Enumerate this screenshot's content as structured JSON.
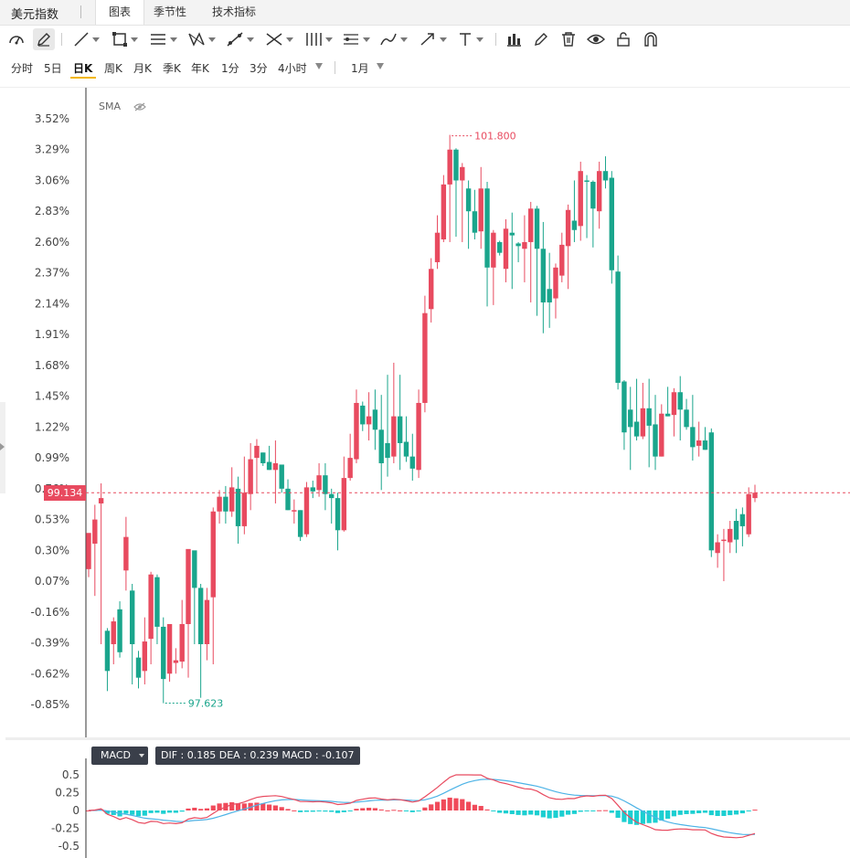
{
  "header": {
    "title": "美元指数",
    "tabs": [
      {
        "label": "图表",
        "active": true
      },
      {
        "label": "季节性",
        "active": false
      },
      {
        "label": "技术指标",
        "active": false
      }
    ]
  },
  "toolbar": {
    "icons": [
      "gauge-icon",
      "pencil-icon",
      "line-icon",
      "rectangle-icon",
      "channel-icon",
      "pattern-icon",
      "measure-icon",
      "fib-icon",
      "gann-icon",
      "parallel-icon",
      "brush-icon",
      "arrow-icon",
      "text-icon",
      "bar-chart-icon",
      "edit-icon",
      "trash-icon",
      "eye-icon",
      "lock-icon",
      "magnet-icon"
    ]
  },
  "periods": {
    "items": [
      "分时",
      "5日",
      "日K",
      "周K",
      "月K",
      "季K",
      "年K",
      "1分",
      "3分",
      "4小时"
    ],
    "active": "日K",
    "range": "1月"
  },
  "indicator": {
    "label": "SMA"
  },
  "colors": {
    "up": "#e84a5f",
    "down": "#1aa58c",
    "dif": "#e84a5f",
    "dea": "#4db3e6",
    "hist_pos": "#f04a5a",
    "hist_neg": "#1ccfd1"
  },
  "chart_data": {
    "type": "candlestick",
    "y_ticks": [
      "3.52%",
      "3.29%",
      "3.06%",
      "2.83%",
      "2.60%",
      "2.37%",
      "2.14%",
      "1.91%",
      "1.68%",
      "1.45%",
      "1.22%",
      "0.99%",
      "0.76%",
      "0.53%",
      "0.30%",
      "0.07%",
      "-0.16%",
      "-0.39%",
      "-0.62%",
      "-0.85%"
    ],
    "ylim_pct": [
      -0.85,
      3.52
    ],
    "current_price": "99.134",
    "max_label": "101.800",
    "min_label": "97.623",
    "candles": [
      [
        0.16,
        0.43,
        0.4,
        0.1
      ],
      [
        0.35,
        0.53,
        0.64,
        -0.04
      ],
      [
        0.65,
        0.69,
        0.8,
        -0.4
      ],
      [
        -0.3,
        -0.6,
        -0.28,
        -0.75
      ],
      [
        -0.4,
        -0.23,
        -0.2,
        -0.55
      ],
      [
        -0.14,
        -0.46,
        -0.08,
        -0.5
      ],
      [
        0.15,
        0.4,
        0.55,
        0.0
      ],
      [
        0.0,
        -0.4,
        0.05,
        -0.7
      ],
      [
        -0.5,
        -0.65,
        -0.45,
        -0.73
      ],
      [
        -0.6,
        -0.38,
        -0.2,
        -0.7
      ],
      [
        -0.36,
        0.12,
        0.14,
        -0.55
      ],
      [
        0.1,
        -0.27,
        0.12,
        -0.4
      ],
      [
        -0.27,
        -0.66,
        -0.2,
        -0.84
      ],
      [
        -0.62,
        -0.25,
        -0.25,
        -0.68
      ],
      [
        -0.54,
        -0.52,
        -0.43,
        -0.62
      ],
      [
        -0.53,
        -0.25,
        -0.07,
        -0.58
      ],
      [
        -0.25,
        0.31,
        0.3,
        -0.65
      ],
      [
        0.3,
        0.02,
        0.05,
        -0.4
      ],
      [
        0.02,
        -0.4,
        0.05,
        -0.8
      ],
      [
        -0.4,
        -0.07,
        0.02,
        -0.52
      ],
      [
        -0.05,
        0.59,
        0.62,
        -0.55
      ],
      [
        0.59,
        0.7,
        0.75,
        0.5
      ],
      [
        0.7,
        0.59,
        0.78,
        0.5
      ],
      [
        0.59,
        0.77,
        0.92,
        0.55
      ],
      [
        0.76,
        0.48,
        0.85,
        0.35
      ],
      [
        0.48,
        0.73,
        1.0,
        0.42
      ],
      [
        0.72,
        0.98,
        1.1,
        0.6
      ],
      [
        0.99,
        1.08,
        1.13,
        0.73
      ],
      [
        1.03,
        0.95,
        1.03,
        0.93
      ],
      [
        0.96,
        0.9,
        1.08,
        0.9
      ],
      [
        0.9,
        0.95,
        1.12,
        0.65
      ],
      [
        0.94,
        0.76,
        0.87,
        0.73
      ],
      [
        0.76,
        0.6,
        0.83,
        0.6
      ],
      [
        0.6,
        0.6,
        0.68,
        0.5
      ],
      [
        0.6,
        0.4,
        0.6,
        0.37
      ],
      [
        0.42,
        0.77,
        0.81,
        0.4
      ],
      [
        0.77,
        0.74,
        0.82,
        0.69
      ],
      [
        0.75,
        0.86,
        0.95,
        0.7
      ],
      [
        0.86,
        0.72,
        0.95,
        0.6
      ],
      [
        0.72,
        0.69,
        0.76,
        0.5
      ],
      [
        0.69,
        0.45,
        0.73,
        0.3
      ],
      [
        0.45,
        0.84,
        1.0,
        0.44
      ],
      [
        0.84,
        0.99,
        1.17,
        0.82
      ],
      [
        0.98,
        1.4,
        1.5,
        0.95
      ],
      [
        1.38,
        1.24,
        1.41,
        1.19
      ],
      [
        1.24,
        1.3,
        1.48,
        1.12
      ],
      [
        1.35,
        1.2,
        1.5,
        1.05
      ],
      [
        1.2,
        0.95,
        1.46,
        0.75
      ],
      [
        1.1,
        0.99,
        1.61,
        0.85
      ],
      [
        1.0,
        1.3,
        1.7,
        0.95
      ],
      [
        1.3,
        1.1,
        1.61,
        0.9
      ],
      [
        1.11,
        1.0,
        1.3,
        0.96
      ],
      [
        1.0,
        0.91,
        1.17,
        0.82
      ],
      [
        0.9,
        1.4,
        1.5,
        0.84
      ],
      [
        1.4,
        2.07,
        2.2,
        1.33
      ],
      [
        2.1,
        2.4,
        2.48,
        2.0
      ],
      [
        2.45,
        2.67,
        2.8,
        2.4
      ],
      [
        2.62,
        3.03,
        3.1,
        2.6
      ],
      [
        3.03,
        3.29,
        3.4,
        2.6
      ],
      [
        3.29,
        3.06,
        3.3,
        2.64
      ],
      [
        3.06,
        3.16,
        3.19,
        2.6
      ],
      [
        3.0,
        2.83,
        3.06,
        2.55
      ],
      [
        2.83,
        2.67,
        2.99,
        2.62
      ],
      [
        2.68,
        3.0,
        3.16,
        2.55
      ],
      [
        3.0,
        2.41,
        3.05,
        2.12
      ],
      [
        2.41,
        2.67,
        2.69,
        2.13
      ],
      [
        2.6,
        2.52,
        2.61,
        2.5
      ],
      [
        2.4,
        2.7,
        2.77,
        2.3
      ],
      [
        2.67,
        2.65,
        2.82,
        2.25
      ],
      [
        2.59,
        2.57,
        2.6,
        2.45
      ],
      [
        2.55,
        2.6,
        2.8,
        2.3
      ],
      [
        2.6,
        2.85,
        2.9,
        2.15
      ],
      [
        2.85,
        2.55,
        2.87,
        2.05
      ],
      [
        2.55,
        2.15,
        2.75,
        1.92
      ],
      [
        2.25,
        2.15,
        2.52,
        1.96
      ],
      [
        2.18,
        2.41,
        2.44,
        2.03
      ],
      [
        2.35,
        2.58,
        2.67,
        2.3
      ],
      [
        2.57,
        2.84,
        2.88,
        2.25
      ],
      [
        2.76,
        2.69,
        3.06,
        2.6
      ],
      [
        2.72,
        3.13,
        3.2,
        2.61
      ],
      [
        3.06,
        3.05,
        3.1,
        2.63
      ],
      [
        3.05,
        2.85,
        3.06,
        2.56
      ],
      [
        2.83,
        3.13,
        3.2,
        2.7
      ],
      [
        3.13,
        3.06,
        3.24,
        3.0
      ],
      [
        3.08,
        2.39,
        3.13,
        2.29
      ],
      [
        2.38,
        1.55,
        2.5,
        1.5
      ],
      [
        1.56,
        1.18,
        1.57,
        1.05
      ],
      [
        1.35,
        1.22,
        1.52,
        0.9
      ],
      [
        1.26,
        1.15,
        1.58,
        1.12
      ],
      [
        1.15,
        1.36,
        1.55,
        1.13
      ],
      [
        1.36,
        1.23,
        1.58,
        0.92
      ],
      [
        1.24,
        1.0,
        1.46,
        0.9
      ],
      [
        1.0,
        1.32,
        1.39,
        1.0
      ],
      [
        1.32,
        1.3,
        1.52,
        1.3
      ],
      [
        1.31,
        1.48,
        1.51,
        1.15
      ],
      [
        1.48,
        1.35,
        1.6,
        1.12
      ],
      [
        1.35,
        1.22,
        1.43,
        1.2
      ],
      [
        1.22,
        1.07,
        1.46,
        0.97
      ],
      [
        1.08,
        1.12,
        1.26,
        1.0
      ],
      [
        1.12,
        1.05,
        1.22,
        1.05
      ],
      [
        1.18,
        0.3,
        1.21,
        0.25
      ],
      [
        0.28,
        0.36,
        0.42,
        0.17
      ],
      [
        0.38,
        0.38,
        0.46,
        0.07
      ],
      [
        0.36,
        0.46,
        0.52,
        0.28
      ],
      [
        0.52,
        0.38,
        0.61,
        0.28
      ],
      [
        0.57,
        0.48,
        0.62,
        0.33
      ],
      [
        0.42,
        0.72,
        0.77,
        0.4
      ],
      [
        0.69,
        0.73,
        0.79,
        0.66
      ]
    ]
  },
  "macd": {
    "button": "MACD",
    "values_text": "DIF : 0.185   DEA : 0.239   MACD : -0.107",
    "y_ticks": [
      "0.5",
      "0.25",
      "0",
      "-0.25",
      "-0.5"
    ],
    "ylim": [
      -0.5,
      0.5
    ]
  }
}
